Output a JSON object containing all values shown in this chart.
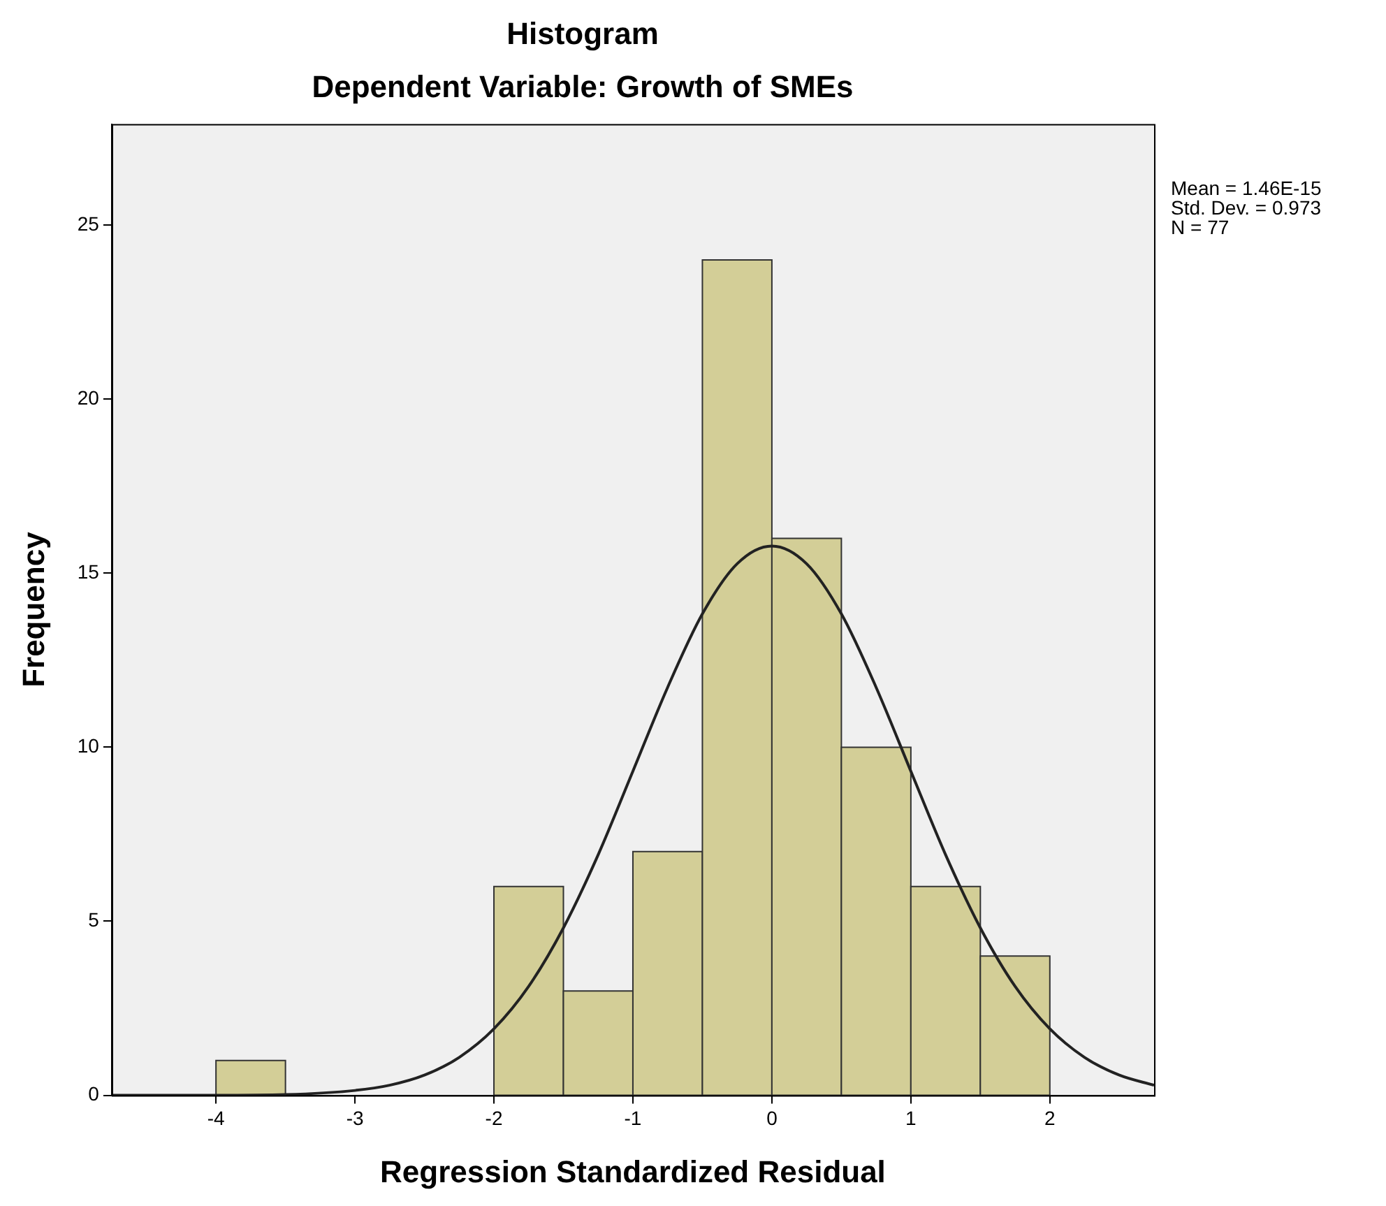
{
  "chart_data": {
    "type": "histogram",
    "title": "Histogram",
    "subtitle": "Dependent Variable: Growth of SMEs",
    "xlabel": "Regression Standardized Residual",
    "ylabel": "Frequency",
    "bins": [
      -4,
      -3.5,
      -3,
      -2.5,
      -2,
      -1.5,
      -1,
      -0.5,
      0,
      0.5,
      1,
      1.5,
      2
    ],
    "values": [
      1,
      0,
      0,
      0,
      6,
      3,
      7,
      24,
      16,
      10,
      6,
      4
    ],
    "color": "#d3ce97",
    "series": [
      {
        "type": "line",
        "color": "#222222",
        "x": [
          -4.75,
          -4.5,
          -4,
          -3.5,
          -3,
          -2.75,
          -2.5,
          -2.25,
          -2,
          -1.75,
          -1.5,
          -1.25,
          -1,
          -0.75,
          -0.5,
          -0.25,
          0,
          0.25,
          0.5,
          0.75,
          1,
          1.25,
          1.5,
          1.75,
          2,
          2.25,
          2.5,
          2.75
        ],
        "values": [
          0,
          0,
          0,
          0.02,
          0.14,
          0.29,
          0.58,
          1.09,
          1.91,
          3.13,
          4.81,
          6.91,
          9.31,
          11.72,
          13.83,
          15.27,
          15.78,
          15.27,
          13.83,
          11.72,
          9.31,
          6.91,
          4.81,
          3.13,
          1.91,
          1.09,
          0.58,
          0.29
        ]
      }
    ],
    "xlim": [
      -4.75,
      2.75
    ],
    "xticks": [
      -4,
      -3,
      -2,
      -1,
      0,
      1,
      2
    ],
    "ylim": [
      0,
      27.9
    ],
    "yticks": [
      0,
      5,
      10,
      15,
      20,
      25
    ],
    "grid": false,
    "legend": false,
    "marker": "none",
    "line_style": "solid",
    "annotations": [
      "Mean = 1.46E-15",
      "Std. Dev. = 0.973",
      "N = 77"
    ]
  }
}
